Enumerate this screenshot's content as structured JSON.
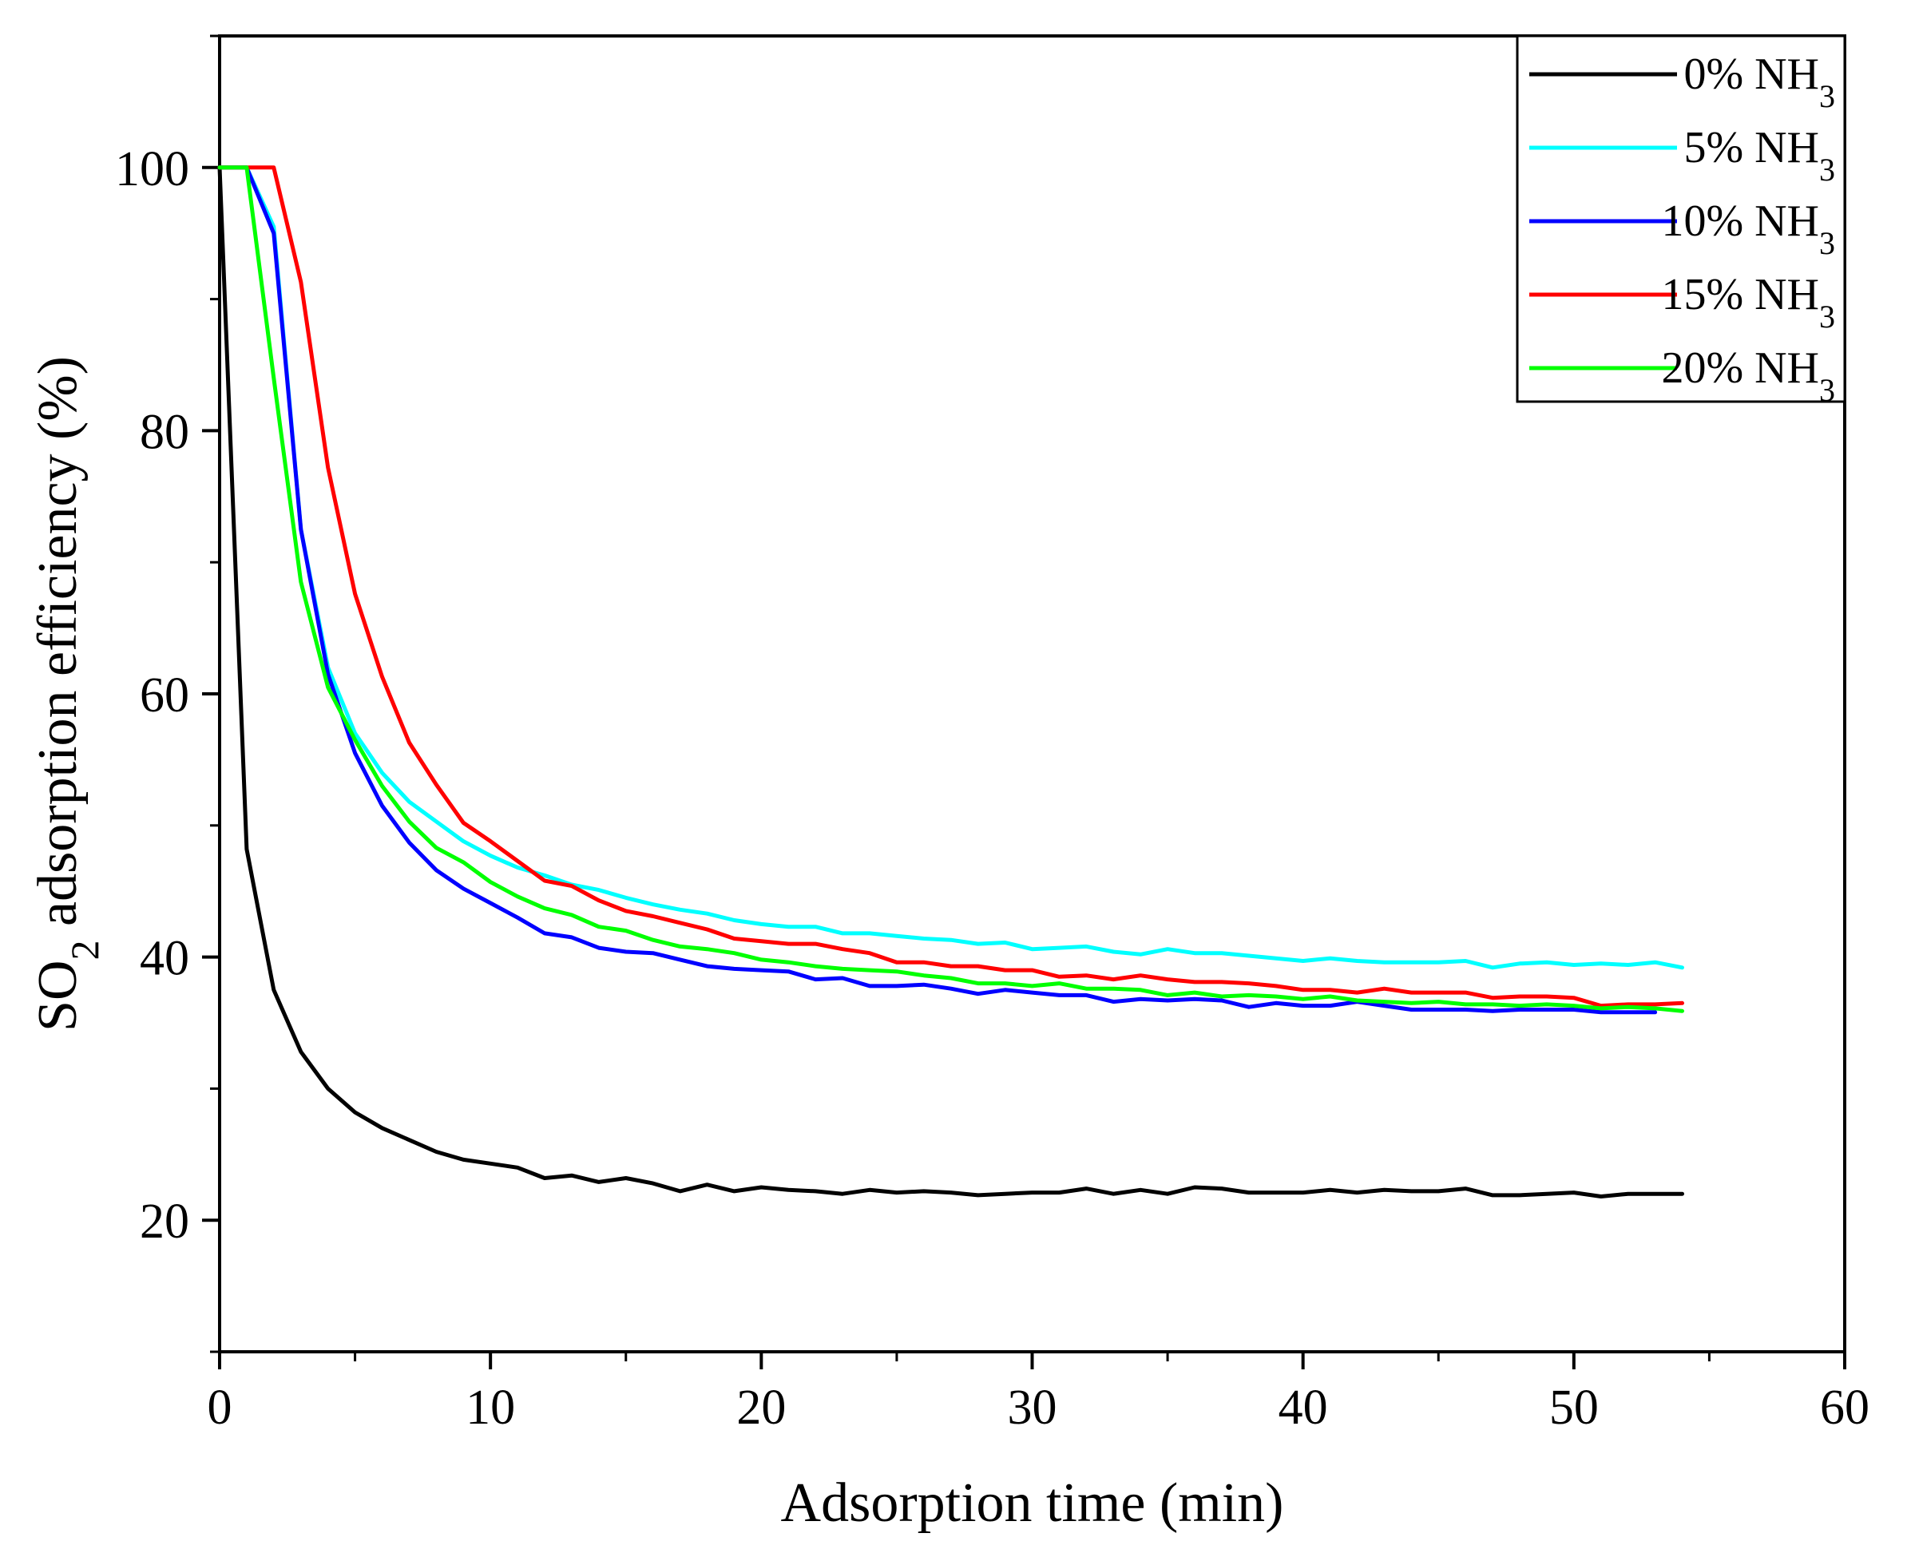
{
  "chart_data": {
    "type": "line",
    "title": "",
    "xlabel": "Adsorption time (min)",
    "ylabel": {
      "pre": "SO",
      "sub": "2",
      "post": " adsorption efficiency (%)"
    },
    "xlim": [
      0,
      60
    ],
    "ylim": [
      10,
      110
    ],
    "xticks": [
      0,
      10,
      20,
      30,
      40,
      50,
      60
    ],
    "yticks": [
      20,
      40,
      60,
      80,
      100
    ],
    "legend_position": "top-right",
    "series": [
      {
        "name": "0% NH3",
        "label_main": "0% NH",
        "label_sub": "3",
        "color": "#000000",
        "x": [
          0,
          1,
          2,
          3,
          4,
          5,
          6,
          7,
          8,
          9,
          10,
          11,
          12,
          13,
          14,
          15,
          16,
          17,
          18,
          19,
          20,
          21,
          22,
          23,
          24,
          25,
          26,
          27,
          28,
          29,
          30,
          31,
          32,
          33,
          34,
          35,
          36,
          37,
          38,
          39,
          40,
          41,
          42,
          43,
          44,
          45,
          46,
          47,
          48,
          49,
          50,
          51,
          52,
          53,
          54
        ],
        "y": [
          100,
          48.2,
          37.5,
          32.8,
          30,
          28.2,
          27,
          26.1,
          25.2,
          24.6,
          24.3,
          24,
          23.2,
          23.4,
          22.9,
          23.2,
          22.8,
          22.2,
          22.7,
          22.2,
          22.5,
          22.3,
          22.2,
          22,
          22.3,
          22.1,
          22.2,
          22.1,
          21.9,
          22,
          22.1,
          22.1,
          22.4,
          22,
          22.3,
          22,
          22.5,
          22.4,
          22.1,
          22.1,
          22.1,
          22.3,
          22.1,
          22.3,
          22.2,
          22.2,
          22.4,
          21.9,
          21.9,
          22,
          22.1,
          21.8,
          22,
          22,
          22
        ]
      },
      {
        "name": "5% NH3",
        "label_main": "5% NH",
        "label_sub": "3",
        "color": "#00FFFF",
        "x": [
          0,
          1,
          2,
          3,
          4,
          5,
          6,
          7,
          8,
          9,
          10,
          11,
          12,
          13,
          14,
          15,
          16,
          17,
          18,
          19,
          20,
          21,
          22,
          23,
          24,
          25,
          26,
          27,
          28,
          29,
          30,
          31,
          32,
          33,
          34,
          35,
          36,
          37,
          38,
          39,
          40,
          41,
          42,
          43,
          44,
          45,
          46,
          47,
          48,
          49,
          50,
          51,
          52,
          53,
          54
        ],
        "y": [
          100,
          100,
          95.5,
          72.5,
          62,
          57,
          54,
          51.8,
          50.3,
          48.8,
          47.7,
          46.8,
          46.2,
          45.5,
          45.1,
          44.5,
          44,
          43.6,
          43.3,
          42.8,
          42.5,
          42.3,
          42.3,
          41.8,
          41.8,
          41.6,
          41.4,
          41.3,
          41,
          41.1,
          40.6,
          40.7,
          40.8,
          40.4,
          40.2,
          40.6,
          40.3,
          40.3,
          40.1,
          39.9,
          39.7,
          39.9,
          39.7,
          39.6,
          39.6,
          39.6,
          39.7,
          39.2,
          39.5,
          39.6,
          39.4,
          39.5,
          39.4,
          39.6,
          39.2
        ]
      },
      {
        "name": "10% NH3",
        "label_main": "10% NH",
        "label_sub": "3",
        "color": "#0000FF",
        "x": [
          0,
          1,
          2,
          3,
          4,
          5,
          6,
          7,
          8,
          9,
          10,
          11,
          12,
          13,
          14,
          15,
          16,
          17,
          18,
          19,
          20,
          21,
          22,
          23,
          24,
          25,
          26,
          27,
          28,
          29,
          30,
          31,
          32,
          33,
          34,
          35,
          36,
          37,
          38,
          39,
          40,
          41,
          42,
          43,
          44,
          45,
          46,
          47,
          48,
          49,
          50,
          51,
          52,
          53
        ],
        "y": [
          100,
          100,
          95,
          72.5,
          61.5,
          55.5,
          51.5,
          48.7,
          46.6,
          45.2,
          44.1,
          43,
          41.8,
          41.5,
          40.7,
          40.4,
          40.3,
          39.8,
          39.3,
          39.1,
          39,
          38.9,
          38.3,
          38.4,
          37.8,
          37.8,
          37.9,
          37.6,
          37.2,
          37.5,
          37.3,
          37.1,
          37.1,
          36.6,
          36.8,
          36.7,
          36.8,
          36.7,
          36.2,
          36.5,
          36.3,
          36.3,
          36.6,
          36.3,
          36,
          36,
          36,
          35.9,
          36,
          36,
          36,
          35.8,
          35.8,
          35.8
        ]
      },
      {
        "name": "15% NH3",
        "label_main": "15% NH",
        "label_sub": "3",
        "color": "#FF0000",
        "x": [
          0,
          1,
          2,
          3,
          4,
          5,
          6,
          7,
          8,
          9,
          10,
          11,
          12,
          13,
          14,
          15,
          16,
          17,
          18,
          19,
          20,
          21,
          22,
          23,
          24,
          25,
          26,
          27,
          28,
          29,
          30,
          31,
          32,
          33,
          34,
          35,
          36,
          37,
          38,
          39,
          40,
          41,
          42,
          43,
          44,
          45,
          46,
          47,
          48,
          49,
          50,
          51,
          52,
          53,
          54
        ],
        "y": [
          100,
          100,
          100,
          91.3,
          77.2,
          67.6,
          61.3,
          56.3,
          53.1,
          50.2,
          48.8,
          47.3,
          45.8,
          45.4,
          44.3,
          43.5,
          43.1,
          42.6,
          42.1,
          41.4,
          41.2,
          41,
          41,
          40.6,
          40.3,
          39.6,
          39.6,
          39.3,
          39.3,
          39,
          39,
          38.5,
          38.6,
          38.3,
          38.6,
          38.3,
          38.1,
          38.1,
          38,
          37.8,
          37.5,
          37.5,
          37.3,
          37.6,
          37.3,
          37.3,
          37.3,
          36.9,
          37,
          37,
          36.9,
          36.3,
          36.4,
          36.4,
          36.5
        ]
      },
      {
        "name": "20% NH3",
        "label_main": "20% NH",
        "label_sub": "3",
        "color": "#00FF00",
        "x": [
          0,
          1,
          2,
          3,
          4,
          5,
          6,
          7,
          8,
          9,
          10,
          11,
          12,
          13,
          14,
          15,
          16,
          17,
          18,
          19,
          20,
          21,
          22,
          23,
          24,
          25,
          26,
          27,
          28,
          29,
          30,
          31,
          32,
          33,
          34,
          35,
          36,
          37,
          38,
          39,
          40,
          41,
          42,
          43,
          44,
          45,
          46,
          47,
          48,
          49,
          50,
          51,
          52,
          53,
          54
        ],
        "y": [
          100,
          100,
          84,
          68.5,
          60.5,
          56.5,
          53,
          50.3,
          48.3,
          47.2,
          45.7,
          44.6,
          43.7,
          43.2,
          42.3,
          42,
          41.3,
          40.8,
          40.6,
          40.3,
          39.8,
          39.6,
          39.3,
          39.1,
          39,
          38.9,
          38.6,
          38.4,
          38,
          38,
          37.8,
          38,
          37.6,
          37.6,
          37.5,
          37.1,
          37.3,
          37,
          37.1,
          37,
          36.8,
          37,
          36.7,
          36.6,
          36.5,
          36.6,
          36.4,
          36.4,
          36.3,
          36.4,
          36.3,
          36.1,
          36.2,
          36.1,
          35.9
        ]
      }
    ]
  }
}
